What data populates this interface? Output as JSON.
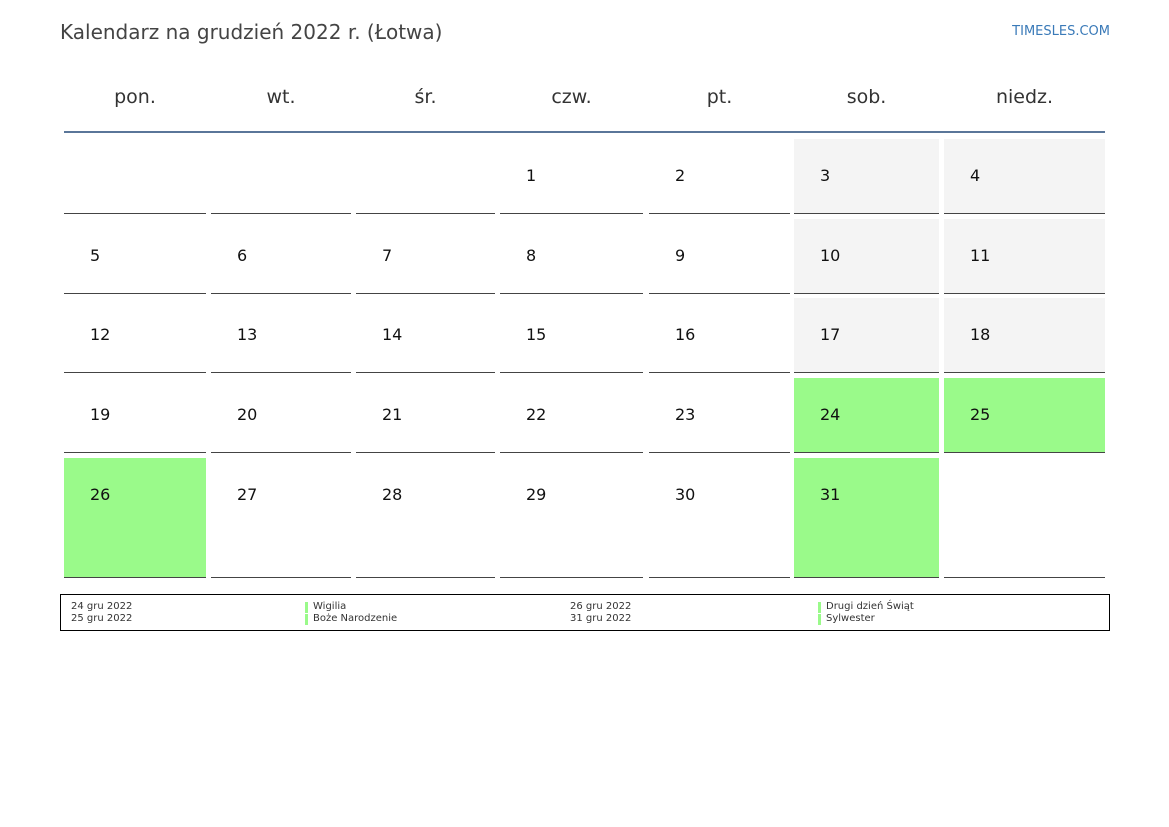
{
  "header": {
    "title": "Kalendarz na grudzień 2022 r. (Łotwa)",
    "brand": "TIMESLES.COM"
  },
  "weekdays": [
    "pon.",
    "wt.",
    "śr.",
    "czw.",
    "pt.",
    "sob.",
    "niedz."
  ],
  "weeks": [
    [
      null,
      null,
      null,
      {
        "day": 1
      },
      {
        "day": 2
      },
      {
        "day": 3
      },
      {
        "day": 4
      }
    ],
    [
      {
        "day": 5
      },
      {
        "day": 6
      },
      {
        "day": 7
      },
      {
        "day": 8
      },
      {
        "day": 9
      },
      {
        "day": 10
      },
      {
        "day": 11
      }
    ],
    [
      {
        "day": 12
      },
      {
        "day": 13
      },
      {
        "day": 14
      },
      {
        "day": 15
      },
      {
        "day": 16
      },
      {
        "day": 17
      },
      {
        "day": 18
      }
    ],
    [
      {
        "day": 19
      },
      {
        "day": 20
      },
      {
        "day": 21
      },
      {
        "day": 22
      },
      {
        "day": 23
      },
      {
        "day": 24,
        "holiday": true
      },
      {
        "day": 25,
        "holiday": true
      }
    ],
    [
      {
        "day": 26,
        "holiday": true
      },
      {
        "day": 27
      },
      {
        "day": 28
      },
      {
        "day": 29
      },
      {
        "day": 30
      },
      {
        "day": 31,
        "holiday": true
      },
      null
    ]
  ],
  "holidays": [
    {
      "date": "24 gru 2022",
      "name": "Wigilia"
    },
    {
      "date": "25 gru 2022",
      "name": "Boże Narodzenie"
    },
    {
      "date": "26 gru 2022",
      "name": "Drugi dzień Świąt"
    },
    {
      "date": "31 gru 2022",
      "name": "Sylwester"
    }
  ]
}
